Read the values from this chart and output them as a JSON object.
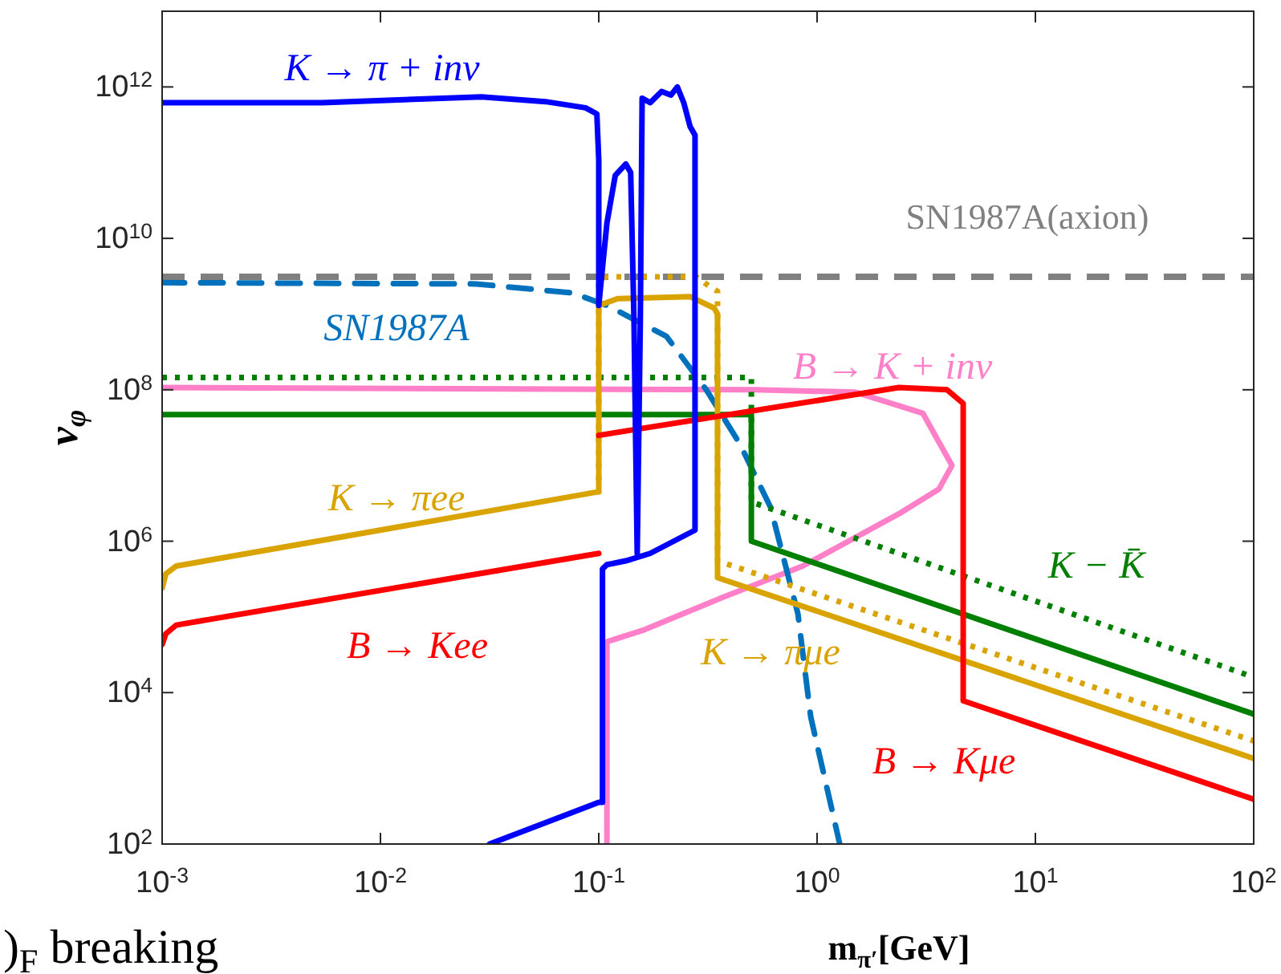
{
  "chart_data": {
    "type": "line",
    "xlabel": "m$_{π′}$[GeV]",
    "ylabel": "v$_{φ}$",
    "log": "xy",
    "grid": false,
    "xlim": [
      0.001,
      100
    ],
    "ylim": [
      100,
      10000000000000.0
    ],
    "xticks": [
      {
        "value": 0.001,
        "label": "10$^{-3}$"
      },
      {
        "value": 0.01,
        "label": "10$^{-2}$"
      },
      {
        "value": 0.1,
        "label": "10$^{-1}$"
      },
      {
        "value": 1,
        "label": "10$^{0}$"
      },
      {
        "value": 10,
        "label": "10$^{1}$"
      },
      {
        "value": 100,
        "label": "10$^{2}$"
      }
    ],
    "yticks": [
      {
        "value": 100,
        "label": "10$^{2}$"
      },
      {
        "value": 10000,
        "label": "10$^{4}$"
      },
      {
        "value": 1000000,
        "label": "10$^{6}$"
      },
      {
        "value": 100000000,
        "label": "10$^{8}$"
      },
      {
        "value": 10000000000,
        "label": "10$^{10}$"
      },
      {
        "value": 1000000000000,
        "label": "10$^{12}$"
      }
    ],
    "series": [
      {
        "name": "B → K + inv",
        "color": "#ff80c8",
        "line_style": "solid",
        "x": [
          0.001,
          0.516,
          1.5,
          3.05,
          4.15,
          3.62,
          2.37,
          0.86,
          0.368,
          0.158,
          0.109,
          0.109
        ],
        "values": [
          107000000.0,
          100000000.0,
          93000000.0,
          49000000.0,
          10000000.0,
          4900000.0,
          2300000.0,
          470000.0,
          180000.0,
          66000.0,
          47000.0,
          100
        ]
      },
      {
        "name": "SN1987A",
        "color": "#0072bd",
        "line_style": "dashed",
        "x": [
          0.001,
          0.0275,
          0.076,
          0.109,
          0.204,
          0.311,
          0.444,
          0.612,
          0.817,
          0.935,
          1.27
        ],
        "values": [
          2600000000.0,
          2500000000.0,
          1900000000.0,
          1300000000.0,
          510000000.0,
          100000000.0,
          19000000.0,
          2800000.0,
          110000.0,
          4800.0,
          100
        ]
      },
      {
        "color": "#007f00",
        "line_style": "dotted",
        "x": [
          0.001,
          0.5,
          0.5,
          100
        ],
        "values": [
          145000000.0,
          145000000.0,
          3300000.0,
          16000.0
        ]
      },
      {
        "name": "K − K̄",
        "color": "#007f00",
        "line_style": "solid",
        "x": [
          0.001,
          0.5,
          0.5,
          100
        ],
        "values": [
          47000000.0,
          47000000.0,
          1000000.0,
          5200.0
        ]
      },
      {
        "color": "#d9a300",
        "line_style": "dotted",
        "x": [
          0.1,
          0.1,
          0.108,
          0.28,
          0.33,
          0.35,
          0.35,
          100
        ],
        "values": [
          6300000.0,
          2700000000.0,
          3100000000.0,
          3100000000.0,
          2200000000.0,
          2000000000.0,
          550000.0,
          2300.0
        ]
      },
      {
        "name": "K → πμe",
        "color": "#d9a300",
        "line_style": "solid",
        "x": [
          0.1,
          0.1,
          0.122,
          0.262,
          0.338,
          0.35,
          0.35,
          100
        ],
        "values": [
          4500000.0,
          1300000000.0,
          1600000000.0,
          1700000000.0,
          1200000000.0,
          1000000000.0,
          330000.0,
          1350.0
        ]
      },
      {
        "name": "K → πee",
        "color": "#d9a300",
        "line_style": "solid",
        "x": [
          0.001,
          0.00104,
          0.00116,
          0.1
        ],
        "values": [
          240000.0,
          370000.0,
          470000.0,
          4500000.0
        ]
      },
      {
        "name": "B → Kee",
        "color": "#ff0000",
        "line_style": "solid",
        "x": [
          0.001,
          0.00104,
          0.00116,
          0.1
        ],
        "values": [
          43000.0,
          60000.0,
          78000.0,
          690000.0
        ]
      },
      {
        "name": "B → Kμe",
        "color": "#ff0000",
        "line_style": "solid",
        "x": [
          0.1,
          2.37,
          3.94,
          4.67,
          4.67,
          100
        ],
        "values": [
          25000000.0,
          107000000.0,
          100000000.0,
          66000000.0,
          7800.0,
          390
        ]
      },
      {
        "name": "K → π + inv",
        "color": "#0000ff",
        "line_style": "solid",
        "x": [
          0.001,
          0.0054,
          0.029,
          0.057,
          0.087,
          0.098,
          0.1,
          0.1,
          0.109,
          0.119,
          0.133,
          0.14,
          0.145,
          0.15,
          0.155,
          0.158,
          0.172,
          0.194,
          0.214,
          0.229,
          0.245,
          0.262,
          0.276,
          0.276,
          0.172,
          0.133,
          0.109,
          0.104,
          0.104,
          0.1,
          0.0316
        ],
        "values": [
          620000000000.0,
          620000000000.0,
          740000000000.0,
          640000000000.0,
          530000000000.0,
          440000000000.0,
          110000000000.0,
          1300000000.0,
          16000000000.0,
          68000000000.0,
          96000000000.0,
          74000000000.0,
          830000000.0,
          690000.0,
          830000000.0,
          710000000000.0,
          620000000000.0,
          870000000000.0,
          780000000000.0,
          1000000000000.0,
          620000000000.0,
          300000000000.0,
          230000000000.0,
          1400000.0,
          690000.0,
          550000.0,
          490000.0,
          430000.0,
          355,
          355,
          100
        ]
      }
    ],
    "ref_lines": [
      {
        "axis": "y",
        "value": 3100000000.0,
        "label": "SN1987A(axion)",
        "color": "#808080",
        "line_style": "dashed"
      }
    ],
    "annotations": [
      ")$_{F}$ breaking"
    ]
  }
}
